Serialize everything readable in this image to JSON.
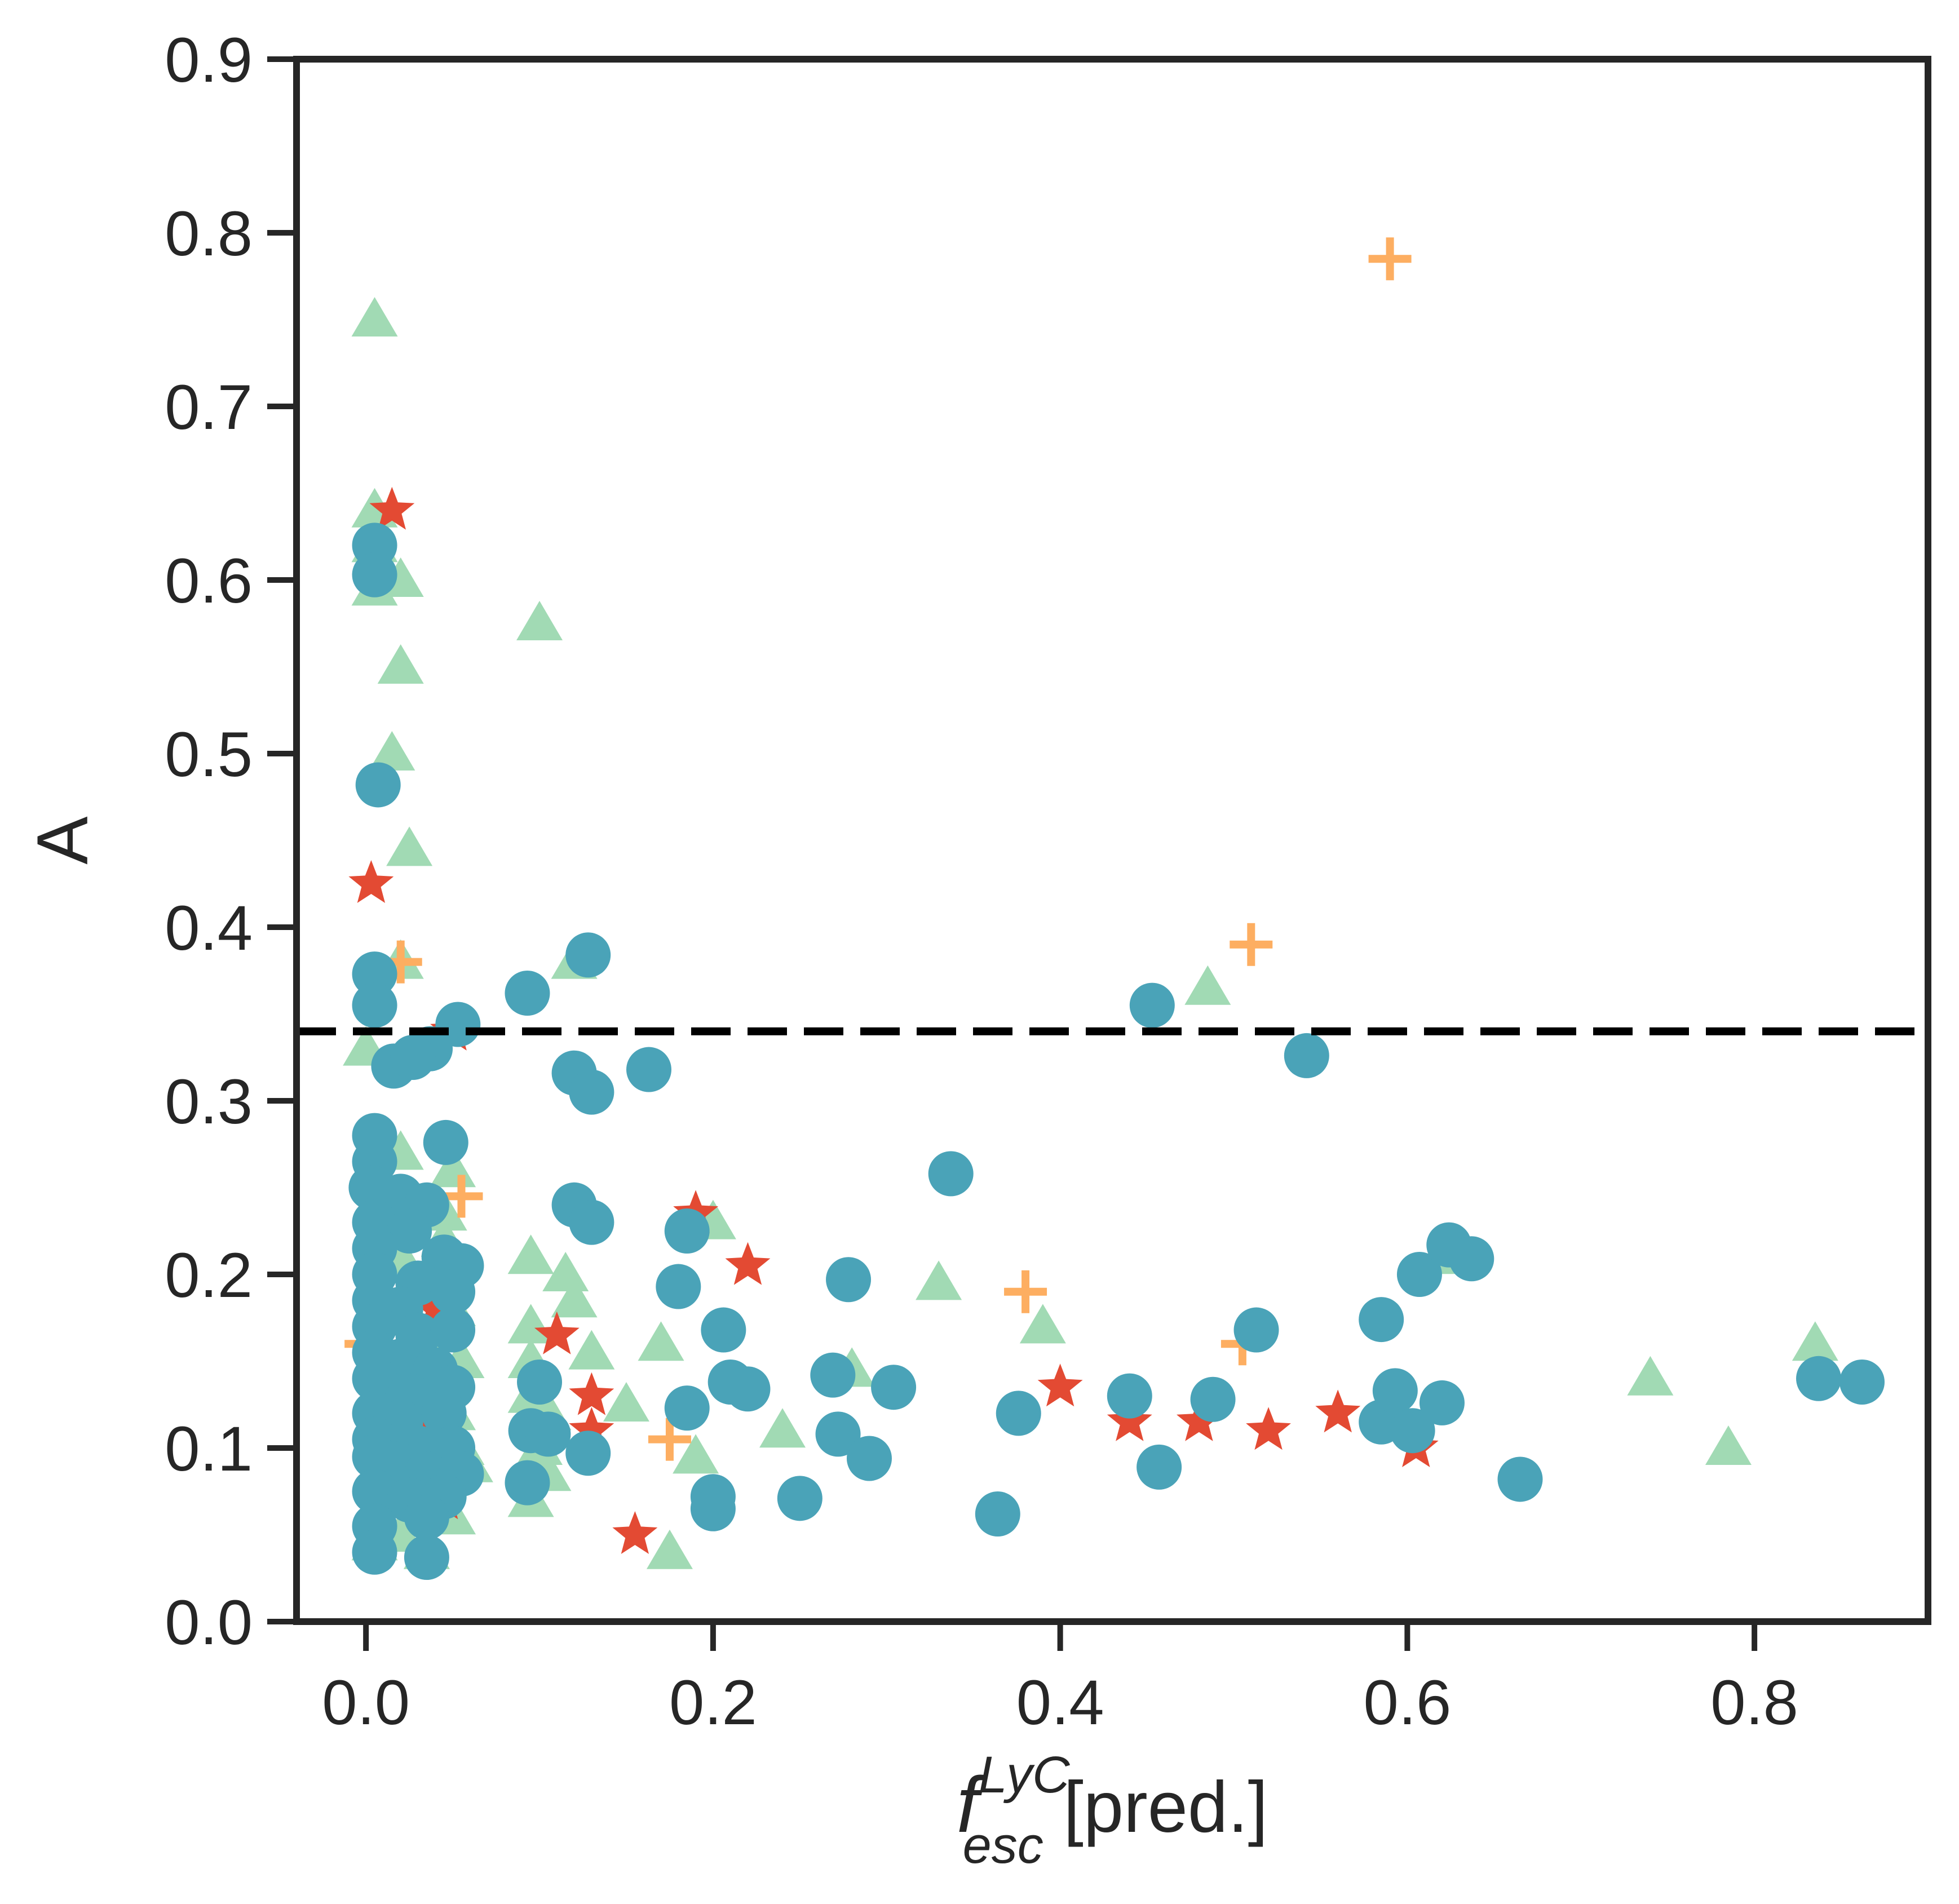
{
  "chart_data": {
    "type": "scatter",
    "title": "",
    "xlabel": {
      "main": "f",
      "sup": "LyC",
      "sub": "esc",
      "suffix": " [pred.]"
    },
    "ylabel": "A",
    "xlim": [
      -0.04,
      0.9
    ],
    "ylim": [
      0.0,
      0.9
    ],
    "xticks": [
      0.0,
      0.2,
      0.4,
      0.6,
      0.8
    ],
    "yticks": [
      0.0,
      0.1,
      0.2,
      0.3,
      0.4,
      0.5,
      0.6,
      0.7,
      0.8,
      0.9
    ],
    "xtick_labels": [
      "0.0",
      "0.2",
      "0.4",
      "0.6",
      "0.8"
    ],
    "ytick_labels": [
      "0.0",
      "0.1",
      "0.2",
      "0.3",
      "0.4",
      "0.5",
      "0.6",
      "0.7",
      "0.8",
      "0.9"
    ],
    "grid": false,
    "legend": "none",
    "reference_lines": [
      {
        "orientation": "horizontal",
        "y": 0.34,
        "style": "dashed",
        "color": "#000000"
      }
    ],
    "series": [
      {
        "marker": "triangle",
        "color": "#a1dab4",
        "points": [
          [
            0.005,
            0.75
          ],
          [
            0.005,
            0.64
          ],
          [
            0.005,
            0.62
          ],
          [
            0.005,
            0.595
          ],
          [
            0.02,
            0.6
          ],
          [
            0.02,
            0.55
          ],
          [
            0.015,
            0.5
          ],
          [
            0.025,
            0.445
          ],
          [
            0.1,
            0.575
          ],
          [
            0.12,
            0.38
          ],
          [
            0.02,
            0.38
          ],
          [
            0.0,
            0.33
          ],
          [
            0.02,
            0.27
          ],
          [
            0.05,
            0.26
          ],
          [
            0.045,
            0.235
          ],
          [
            0.045,
            0.22
          ],
          [
            0.02,
            0.21
          ],
          [
            0.04,
            0.195
          ],
          [
            0.05,
            0.18
          ],
          [
            0.045,
            0.165
          ],
          [
            0.055,
            0.15
          ],
          [
            0.045,
            0.135
          ],
          [
            0.05,
            0.12
          ],
          [
            0.055,
            0.1
          ],
          [
            0.06,
            0.09
          ],
          [
            0.04,
            0.07
          ],
          [
            0.05,
            0.06
          ],
          [
            0.02,
            0.05
          ],
          [
            0.005,
            0.045
          ],
          [
            0.035,
            0.04
          ],
          [
            0.095,
            0.21
          ],
          [
            0.115,
            0.2
          ],
          [
            0.12,
            0.185
          ],
          [
            0.095,
            0.17
          ],
          [
            0.095,
            0.15
          ],
          [
            0.13,
            0.155
          ],
          [
            0.095,
            0.13
          ],
          [
            0.105,
            0.12
          ],
          [
            0.1,
            0.1
          ],
          [
            0.105,
            0.085
          ],
          [
            0.095,
            0.07
          ],
          [
            0.15,
            0.125
          ],
          [
            0.17,
            0.16
          ],
          [
            0.175,
            0.04
          ],
          [
            0.19,
            0.095
          ],
          [
            0.2,
            0.23
          ],
          [
            0.24,
            0.11
          ],
          [
            0.28,
            0.145
          ],
          [
            0.33,
            0.195
          ],
          [
            0.39,
            0.17
          ],
          [
            0.485,
            0.365
          ],
          [
            0.625,
            0.21
          ],
          [
            0.74,
            0.14
          ],
          [
            0.785,
            0.1
          ],
          [
            0.835,
            0.16
          ]
        ]
      },
      {
        "marker": "star",
        "color": "#e34a33",
        "points": [
          [
            0.015,
            0.64
          ],
          [
            0.003,
            0.425
          ],
          [
            0.05,
            0.34
          ],
          [
            0.11,
            0.165
          ],
          [
            0.13,
            0.13
          ],
          [
            0.13,
            0.11
          ],
          [
            0.155,
            0.05
          ],
          [
            0.19,
            0.235
          ],
          [
            0.22,
            0.205
          ],
          [
            0.4,
            0.135
          ],
          [
            0.44,
            0.115
          ],
          [
            0.48,
            0.115
          ],
          [
            0.52,
            0.11
          ],
          [
            0.56,
            0.12
          ],
          [
            0.605,
            0.1
          ],
          [
            0.045,
            0.07
          ],
          [
            0.035,
            0.11
          ],
          [
            0.04,
            0.18
          ],
          [
            0.025,
            0.1
          ]
        ]
      },
      {
        "marker": "plus",
        "color": "#fdae61",
        "points": [
          [
            0.59,
            0.785
          ],
          [
            0.51,
            0.39
          ],
          [
            0.02,
            0.38
          ],
          [
            0.005,
            0.25
          ],
          [
            0.055,
            0.245
          ],
          [
            0.0,
            0.16
          ],
          [
            0.025,
            0.17
          ],
          [
            0.04,
            0.12
          ],
          [
            0.175,
            0.105
          ],
          [
            0.38,
            0.19
          ],
          [
            0.505,
            0.16
          ]
        ]
      },
      {
        "marker": "circle",
        "color": "#4aa3b8",
        "points": [
          [
            0.005,
            0.62
          ],
          [
            0.005,
            0.603
          ],
          [
            0.007,
            0.482
          ],
          [
            0.005,
            0.373
          ],
          [
            0.005,
            0.355
          ],
          [
            0.128,
            0.384
          ],
          [
            0.093,
            0.362
          ],
          [
            0.053,
            0.344
          ],
          [
            0.016,
            0.32
          ],
          [
            0.037,
            0.33
          ],
          [
            0.027,
            0.325
          ],
          [
            0.12,
            0.316
          ],
          [
            0.13,
            0.305
          ],
          [
            0.163,
            0.318
          ],
          [
            0.453,
            0.355
          ],
          [
            0.542,
            0.326
          ],
          [
            0.005,
            0.28
          ],
          [
            0.005,
            0.265
          ],
          [
            0.046,
            0.276
          ],
          [
            0.003,
            0.25
          ],
          [
            0.02,
            0.245
          ],
          [
            0.035,
            0.24
          ],
          [
            0.005,
            0.23
          ],
          [
            0.025,
            0.225
          ],
          [
            0.005,
            0.215
          ],
          [
            0.045,
            0.21
          ],
          [
            0.055,
            0.205
          ],
          [
            0.005,
            0.2
          ],
          [
            0.03,
            0.195
          ],
          [
            0.005,
            0.185
          ],
          [
            0.02,
            0.18
          ],
          [
            0.05,
            0.19
          ],
          [
            0.005,
            0.17
          ],
          [
            0.03,
            0.165
          ],
          [
            0.05,
            0.168
          ],
          [
            0.005,
            0.155
          ],
          [
            0.02,
            0.15
          ],
          [
            0.04,
            0.145
          ],
          [
            0.005,
            0.14
          ],
          [
            0.025,
            0.13
          ],
          [
            0.05,
            0.135
          ],
          [
            0.005,
            0.12
          ],
          [
            0.02,
            0.115
          ],
          [
            0.045,
            0.12
          ],
          [
            0.005,
            0.105
          ],
          [
            0.03,
            0.1
          ],
          [
            0.05,
            0.1
          ],
          [
            0.005,
            0.095
          ],
          [
            0.02,
            0.09
          ],
          [
            0.035,
            0.085
          ],
          [
            0.055,
            0.085
          ],
          [
            0.005,
            0.075
          ],
          [
            0.025,
            0.07
          ],
          [
            0.045,
            0.072
          ],
          [
            0.035,
            0.06
          ],
          [
            0.005,
            0.055
          ],
          [
            0.005,
            0.04
          ],
          [
            0.035,
            0.037
          ],
          [
            0.12,
            0.24
          ],
          [
            0.13,
            0.23
          ],
          [
            0.185,
            0.225
          ],
          [
            0.18,
            0.193
          ],
          [
            0.206,
            0.168
          ],
          [
            0.1,
            0.138
          ],
          [
            0.095,
            0.11
          ],
          [
            0.105,
            0.108
          ],
          [
            0.093,
            0.08
          ],
          [
            0.128,
            0.097
          ],
          [
            0.185,
            0.123
          ],
          [
            0.2,
            0.072
          ],
          [
            0.2,
            0.065
          ],
          [
            0.21,
            0.138
          ],
          [
            0.22,
            0.134
          ],
          [
            0.25,
            0.071
          ],
          [
            0.269,
            0.142
          ],
          [
            0.272,
            0.108
          ],
          [
            0.29,
            0.094
          ],
          [
            0.278,
            0.197
          ],
          [
            0.304,
            0.135
          ],
          [
            0.337,
            0.258
          ],
          [
            0.364,
            0.062
          ],
          [
            0.376,
            0.12
          ],
          [
            0.44,
            0.13
          ],
          [
            0.457,
            0.089
          ],
          [
            0.488,
            0.128
          ],
          [
            0.513,
            0.168
          ],
          [
            0.585,
            0.174
          ],
          [
            0.585,
            0.115
          ],
          [
            0.593,
            0.133
          ],
          [
            0.603,
            0.11
          ],
          [
            0.607,
            0.2
          ],
          [
            0.62,
            0.126
          ],
          [
            0.624,
            0.217
          ],
          [
            0.637,
            0.209
          ],
          [
            0.665,
            0.082
          ],
          [
            0.837,
            0.14
          ],
          [
            0.862,
            0.138
          ]
        ]
      }
    ]
  }
}
